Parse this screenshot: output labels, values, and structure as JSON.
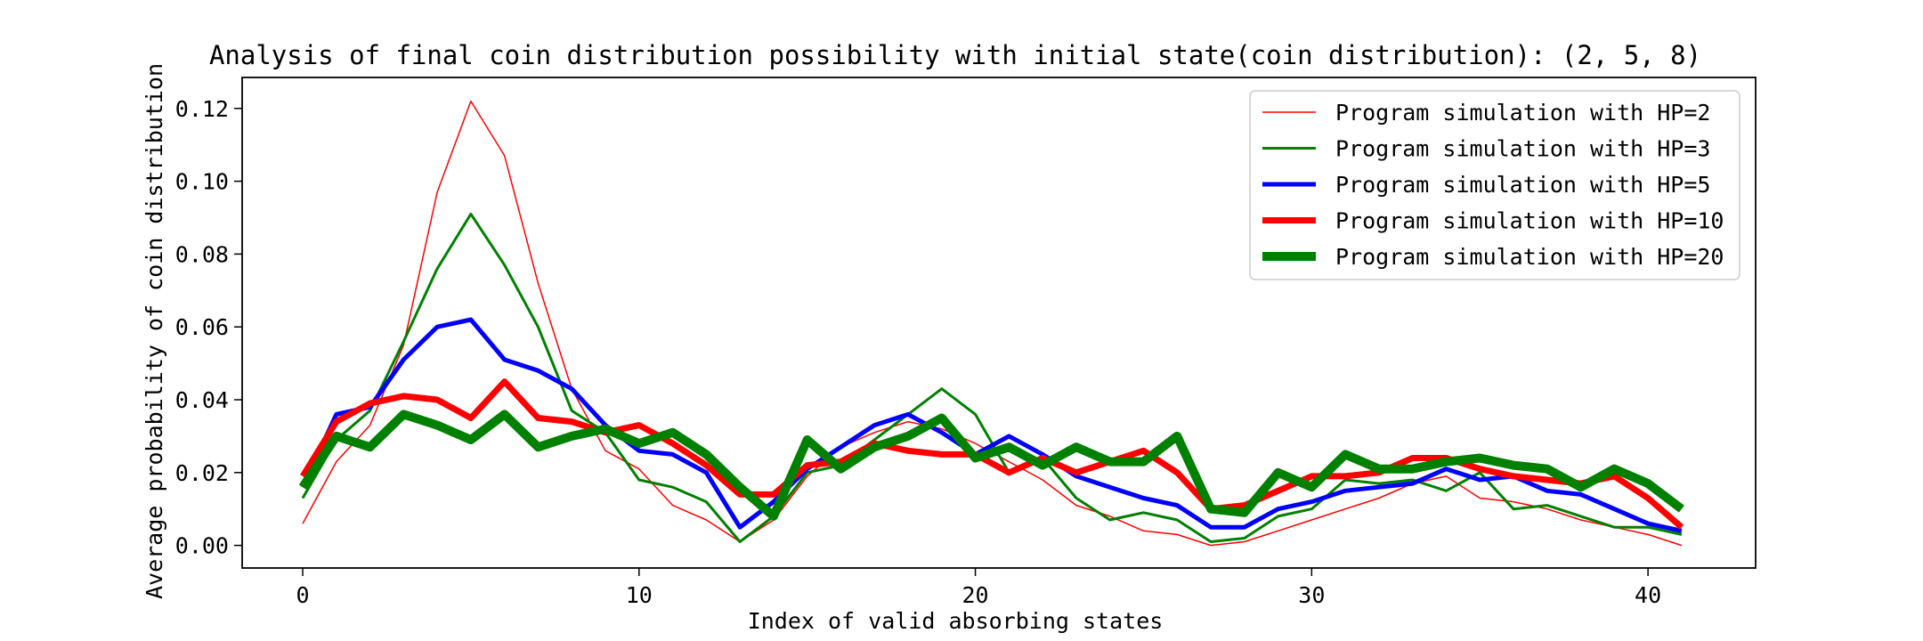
{
  "chart_data": {
    "type": "line",
    "title": "Analysis of final coin distribution possibility with initial state(coin distribution): (2, 5, 8)",
    "xlabel": "Index of valid absorbing states",
    "ylabel": "Average probability of coin distribution",
    "xlim": [
      -1.8,
      43.2
    ],
    "ylim": [
      -0.0062,
      0.1285
    ],
    "xticks": [
      0,
      10,
      20,
      30,
      40
    ],
    "yticks": [
      0.0,
      0.02,
      0.04,
      0.06,
      0.08,
      0.1,
      0.12
    ],
    "ytick_labels": [
      "0.00",
      "0.02",
      "0.04",
      "0.06",
      "0.08",
      "0.10",
      "0.12"
    ],
    "grid": false,
    "legend_position": "top-right",
    "x": [
      0,
      1,
      2,
      3,
      4,
      5,
      6,
      7,
      8,
      9,
      10,
      11,
      12,
      13,
      14,
      15,
      16,
      17,
      18,
      19,
      20,
      21,
      22,
      23,
      24,
      25,
      26,
      27,
      28,
      29,
      30,
      31,
      32,
      33,
      34,
      35,
      36,
      37,
      38,
      39,
      40,
      41
    ],
    "series": [
      {
        "name": "Program simulation with HP=2",
        "color": "#ff0000",
        "width": 1.5,
        "values": [
          0.006,
          0.023,
          0.033,
          0.055,
          0.097,
          0.122,
          0.107,
          0.072,
          0.043,
          0.026,
          0.021,
          0.011,
          0.007,
          0.001,
          0.007,
          0.019,
          0.027,
          0.031,
          0.034,
          0.032,
          0.028,
          0.023,
          0.018,
          0.011,
          0.008,
          0.004,
          0.003,
          0.0,
          0.001,
          0.004,
          0.007,
          0.01,
          0.013,
          0.017,
          0.019,
          0.013,
          0.012,
          0.01,
          0.007,
          0.005,
          0.003,
          0.0
        ]
      },
      {
        "name": "Program simulation with HP=3",
        "color": "#008000",
        "width": 3,
        "values": [
          0.013,
          0.029,
          0.037,
          0.056,
          0.076,
          0.091,
          0.077,
          0.06,
          0.037,
          0.031,
          0.018,
          0.016,
          0.012,
          0.001,
          0.008,
          0.02,
          0.022,
          0.029,
          0.036,
          0.043,
          0.036,
          0.02,
          0.024,
          0.013,
          0.007,
          0.009,
          0.007,
          0.001,
          0.002,
          0.008,
          0.01,
          0.018,
          0.017,
          0.018,
          0.015,
          0.02,
          0.01,
          0.011,
          0.008,
          0.005,
          0.005,
          0.003
        ]
      },
      {
        "name": "Program simulation with HP=5",
        "color": "#0000ff",
        "width": 5,
        "values": [
          0.016,
          0.036,
          0.038,
          0.051,
          0.06,
          0.062,
          0.051,
          0.048,
          0.043,
          0.033,
          0.026,
          0.025,
          0.02,
          0.005,
          0.012,
          0.021,
          0.027,
          0.033,
          0.036,
          0.031,
          0.025,
          0.03,
          0.025,
          0.019,
          0.016,
          0.013,
          0.011,
          0.005,
          0.005,
          0.01,
          0.012,
          0.015,
          0.016,
          0.017,
          0.021,
          0.018,
          0.019,
          0.015,
          0.014,
          0.01,
          0.006,
          0.004
        ]
      },
      {
        "name": "Program simulation with HP=10",
        "color": "#ff0000",
        "width": 7,
        "values": [
          0.019,
          0.034,
          0.039,
          0.041,
          0.04,
          0.035,
          0.045,
          0.035,
          0.034,
          0.031,
          0.033,
          0.028,
          0.022,
          0.014,
          0.014,
          0.022,
          0.023,
          0.028,
          0.026,
          0.025,
          0.025,
          0.02,
          0.024,
          0.02,
          0.023,
          0.026,
          0.02,
          0.01,
          0.011,
          0.015,
          0.019,
          0.019,
          0.02,
          0.024,
          0.024,
          0.021,
          0.019,
          0.018,
          0.017,
          0.019,
          0.013,
          0.005
        ]
      },
      {
        "name": "Program simulation with HP=20",
        "color": "#008000",
        "width": 10,
        "values": [
          0.016,
          0.03,
          0.027,
          0.036,
          0.033,
          0.029,
          0.036,
          0.027,
          0.03,
          0.032,
          0.028,
          0.031,
          0.025,
          0.016,
          0.008,
          0.029,
          0.021,
          0.027,
          0.03,
          0.035,
          0.024,
          0.027,
          0.022,
          0.027,
          0.023,
          0.023,
          0.03,
          0.01,
          0.009,
          0.02,
          0.016,
          0.025,
          0.021,
          0.021,
          0.023,
          0.024,
          0.022,
          0.021,
          0.016,
          0.021,
          0.017,
          0.01
        ]
      }
    ]
  }
}
